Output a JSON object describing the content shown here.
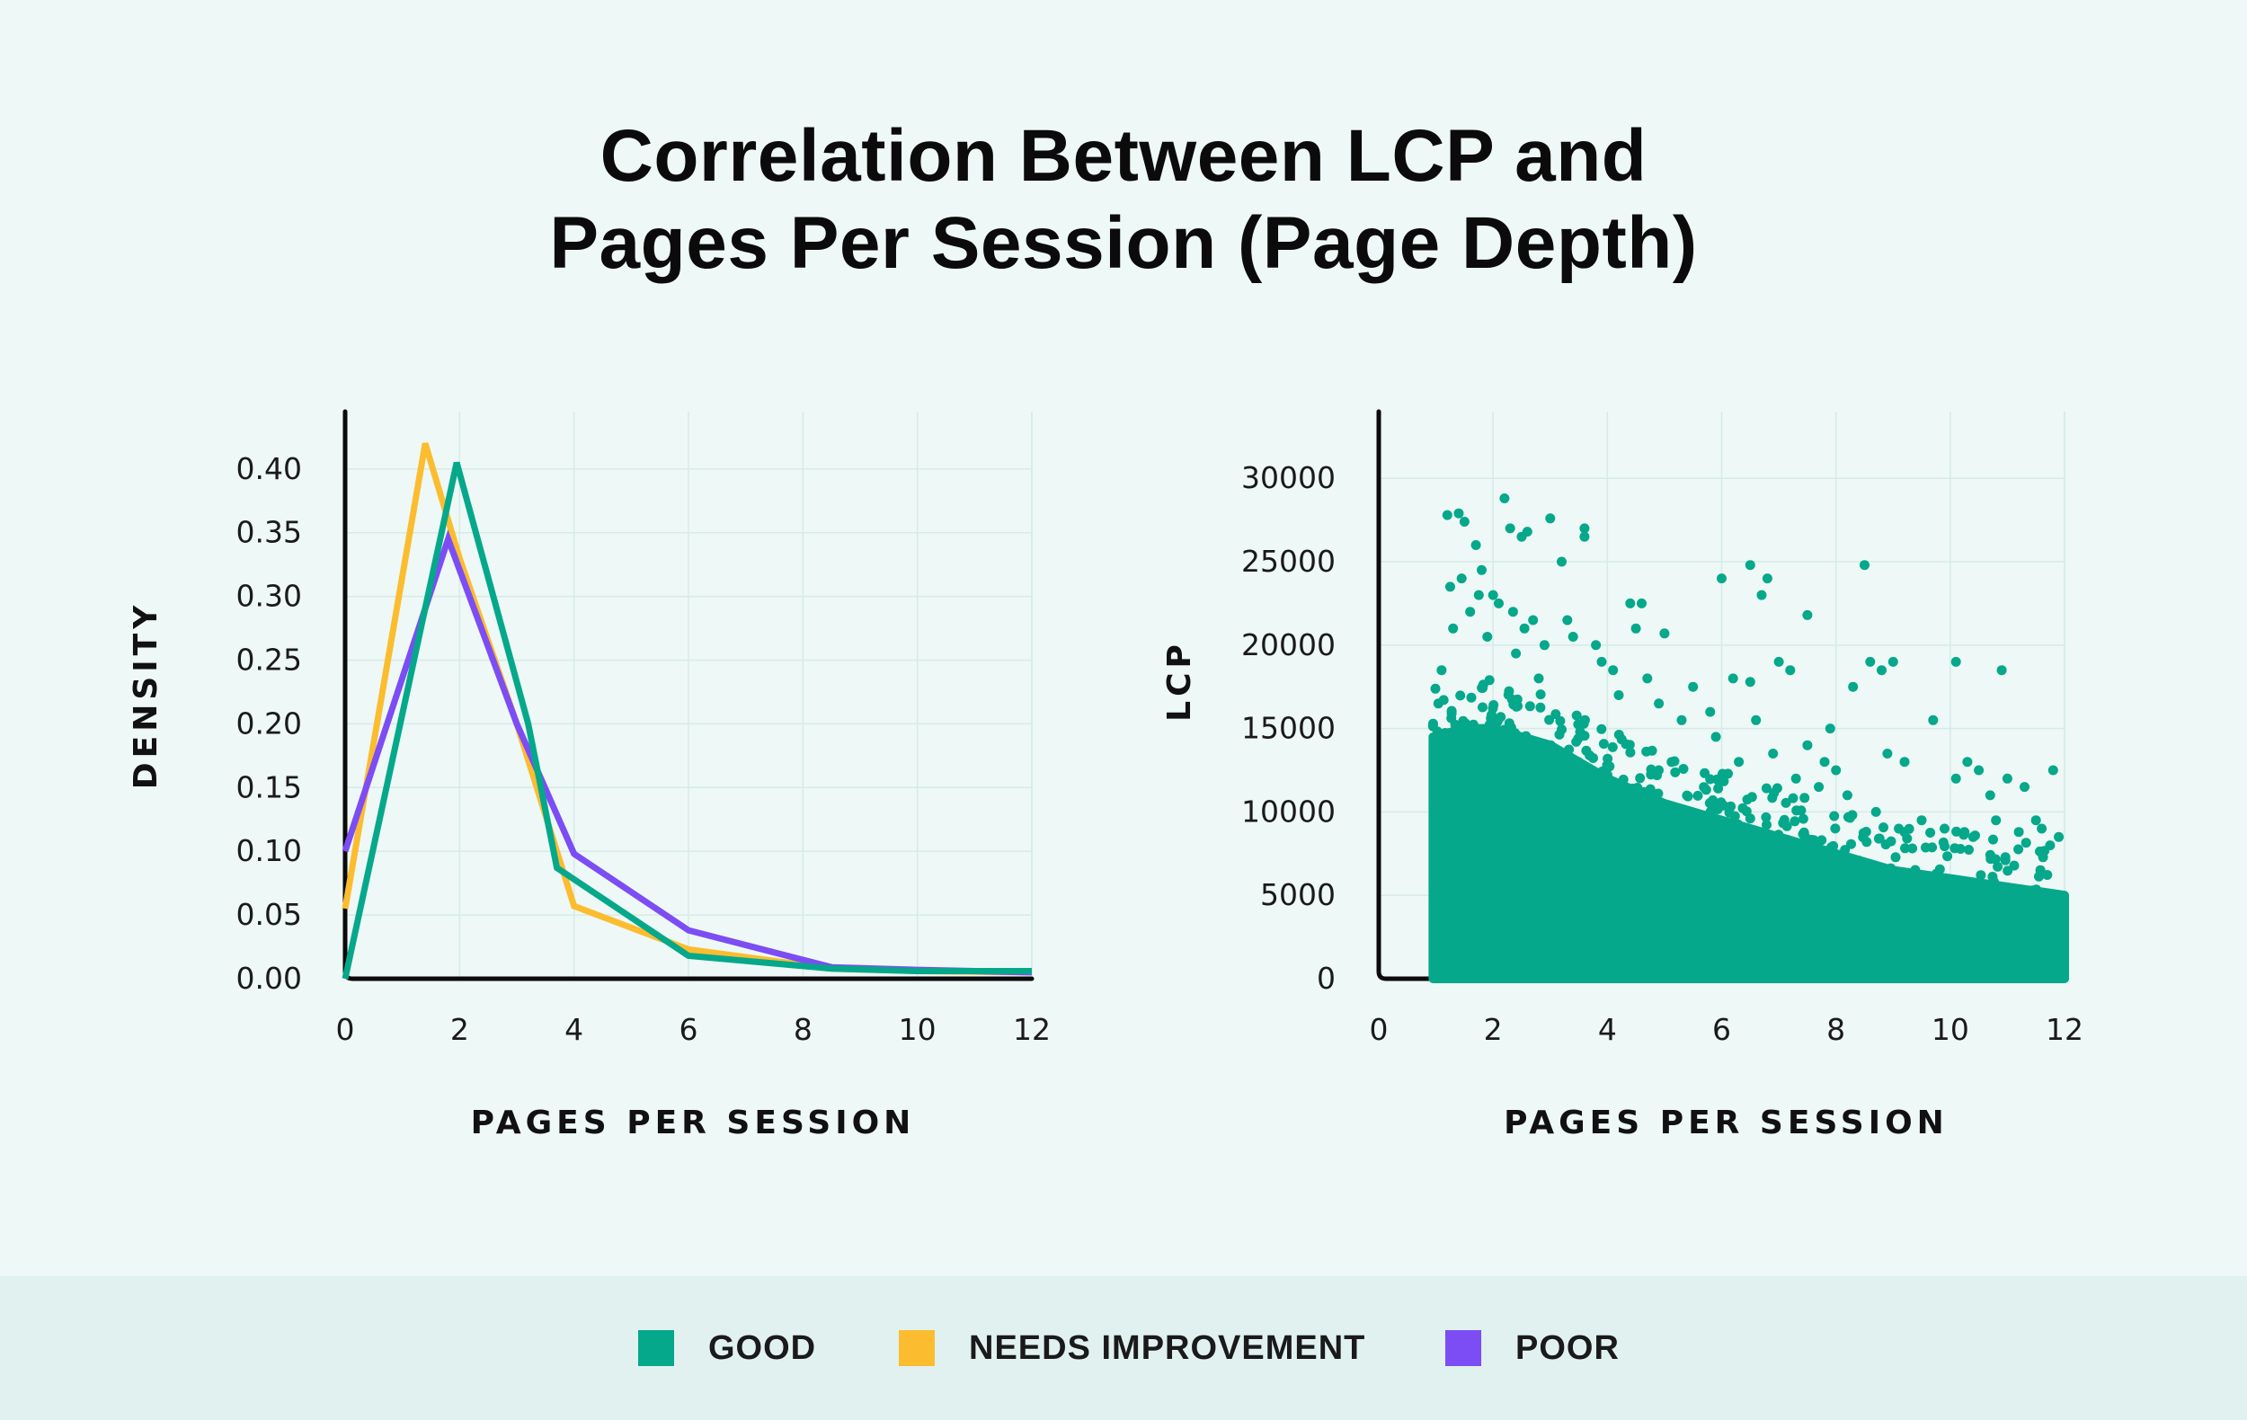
{
  "title_lines": [
    "Correlation Between LCP and",
    "Pages Per Session (Page Depth)"
  ],
  "colors": {
    "good": "#05a88a",
    "needs_improvement": "#fbbd2f",
    "poor": "#7c4df5",
    "grid": "#d6ebe6",
    "axis": "#0b0b0b"
  },
  "legend": [
    {
      "label": "GOOD",
      "color": "#05a88a"
    },
    {
      "label": "NEEDS IMPROVEMENT",
      "color": "#fbbd2f"
    },
    {
      "label": "POOR",
      "color": "#7c4df5"
    }
  ],
  "chart_data": [
    {
      "type": "line",
      "xlabel": "PAGES PER SESSION",
      "ylabel": "DENSITY",
      "xlim": [
        0,
        12
      ],
      "ylim": [
        0,
        0.445
      ],
      "x_ticks": [
        "0",
        "2",
        "4",
        "6",
        "8",
        "10",
        "12"
      ],
      "y_ticks": [
        "0.00",
        "0.05",
        "0.10",
        "0.15",
        "0.20",
        "0.25",
        "0.30",
        "0.35",
        "0.40"
      ],
      "grid": true,
      "series": [
        {
          "name": "NEEDS IMPROVEMENT",
          "color": "#fbbd2f",
          "x": [
            0,
            1.4,
            2,
            3,
            4,
            6,
            8.5,
            10,
            12
          ],
          "y": [
            0.055,
            0.42,
            0.33,
            0.2,
            0.057,
            0.023,
            0.008,
            0.006,
            0.005
          ]
        },
        {
          "name": "POOR",
          "color": "#7c4df5",
          "x": [
            0,
            1.8,
            3,
            4,
            6,
            8.5,
            10,
            12
          ],
          "y": [
            0.1,
            0.345,
            0.2,
            0.098,
            0.038,
            0.009,
            0.007,
            0.005
          ]
        },
        {
          "name": "GOOD",
          "color": "#05a88a",
          "x": [
            0,
            1.95,
            3.2,
            3.7,
            6,
            8.5,
            10,
            12
          ],
          "y": [
            0.0,
            0.405,
            0.2,
            0.087,
            0.018,
            0.008,
            0.006,
            0.006
          ]
        }
      ]
    },
    {
      "type": "scatter",
      "xlabel": "PAGES PER SESSION",
      "ylabel": "LCP",
      "xlim": [
        0,
        12
      ],
      "ylim": [
        0,
        34000
      ],
      "x_ticks": [
        "0",
        "2",
        "4",
        "6",
        "8",
        "10",
        "12"
      ],
      "y_ticks": [
        "0",
        "5000",
        "10000",
        "15000",
        "20000",
        "25000",
        "30000"
      ],
      "grid": true,
      "series": [
        {
          "name": "GOOD",
          "color": "#05a88a",
          "dense_band": {
            "x": [
              0.95,
              1.5,
              2,
              3,
              4,
              5,
              6,
              7,
              8,
              9,
              10,
              11,
              12
            ],
            "y_max": [
              14500,
              15000,
              15000,
              14000,
              12000,
              10500,
              9500,
              8500,
              7500,
              6500,
              6000,
              5500,
              5000
            ]
          },
          "outliers": [
            [
              1.2,
              27800
            ],
            [
              1.4,
              27900
            ],
            [
              1.5,
              27400
            ],
            [
              1.7,
              26000
            ],
            [
              1.8,
              24500
            ],
            [
              2.0,
              23000
            ],
            [
              2.2,
              28800
            ],
            [
              2.3,
              27000
            ],
            [
              2.5,
              26500
            ],
            [
              2.6,
              26800
            ],
            [
              3.0,
              27600
            ],
            [
              3.2,
              25000
            ],
            [
              3.6,
              27000
            ],
            [
              3.6,
              26500
            ],
            [
              4.4,
              22500
            ],
            [
              4.6,
              22500
            ],
            [
              4.5,
              21000
            ],
            [
              5.0,
              20700
            ],
            [
              1.1,
              18500
            ],
            [
              1.3,
              21000
            ],
            [
              1.6,
              22000
            ],
            [
              2.4,
              19500
            ],
            [
              2.8,
              18000
            ],
            [
              3.3,
              21500
            ],
            [
              3.9,
              19000
            ],
            [
              4.2,
              17000
            ],
            [
              5.5,
              17500
            ],
            [
              5.8,
              16000
            ],
            [
              6.0,
              24000
            ],
            [
              6.2,
              18000
            ],
            [
              6.5,
              17800
            ],
            [
              6.5,
              24800
            ],
            [
              6.8,
              24000
            ],
            [
              6.7,
              23000
            ],
            [
              7.0,
              19000
            ],
            [
              7.2,
              18500
            ],
            [
              6.6,
              15500
            ],
            [
              7.5,
              14000
            ],
            [
              7.8,
              13000
            ],
            [
              7.5,
              21800
            ],
            [
              7.9,
              15000
            ],
            [
              8.0,
              12500
            ],
            [
              8.3,
              17500
            ],
            [
              8.5,
              24800
            ],
            [
              8.6,
              19000
            ],
            [
              8.8,
              18500
            ],
            [
              9.0,
              19000
            ],
            [
              8.9,
              13500
            ],
            [
              9.2,
              13000
            ],
            [
              9.7,
              15500
            ],
            [
              10.1,
              19000
            ],
            [
              10.1,
              12000
            ],
            [
              10.3,
              13000
            ],
            [
              10.5,
              12500
            ],
            [
              10.7,
              11000
            ],
            [
              10.9,
              18500
            ],
            [
              11.0,
              12000
            ],
            [
              11.3,
              11500
            ],
            [
              11.8,
              12500
            ],
            [
              11.5,
              9500
            ],
            [
              11.9,
              8500
            ],
            [
              11.6,
              9000
            ],
            [
              11.2,
              8800
            ],
            [
              10.8,
              9500
            ],
            [
              10.4,
              8500
            ],
            [
              9.9,
              9000
            ],
            [
              9.5,
              9500
            ],
            [
              9.1,
              9000
            ],
            [
              8.7,
              10000
            ],
            [
              8.2,
              11000
            ],
            [
              7.7,
              11500
            ],
            [
              7.3,
              12000
            ],
            [
              6.9,
              13500
            ],
            [
              6.3,
              13000
            ],
            [
              5.9,
              14500
            ],
            [
              5.3,
              15500
            ],
            [
              4.9,
              16500
            ],
            [
              4.7,
              18000
            ],
            [
              4.1,
              18500
            ],
            [
              3.8,
              20000
            ],
            [
              3.4,
              20500
            ],
            [
              2.9,
              20000
            ],
            [
              2.7,
              21500
            ],
            [
              2.1,
              22500
            ],
            [
              1.9,
              20500
            ],
            [
              1.25,
              23500
            ],
            [
              1.45,
              24000
            ],
            [
              1.75,
              23000
            ],
            [
              2.35,
              22000
            ],
            [
              2.55,
              21000
            ]
          ]
        }
      ]
    }
  ]
}
